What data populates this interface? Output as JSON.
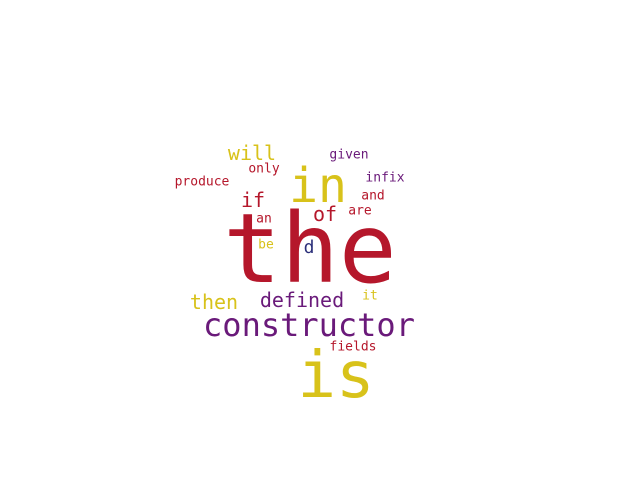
{
  "palette": {
    "red": "#b5172b",
    "purple": "#6a1a7a",
    "yellow": "#d8c21a",
    "navy": "#2b2f7a"
  },
  "words": [
    {
      "id": "the",
      "text": "the",
      "color": "#b5172b"
    },
    {
      "id": "is",
      "text": "is",
      "color": "#d8c21a"
    },
    {
      "id": "constructor",
      "text": "constructor",
      "color": "#6a1a7a"
    },
    {
      "id": "in",
      "text": "in",
      "color": "#d8c21a"
    },
    {
      "id": "will",
      "text": "will",
      "color": "#d8c21a"
    },
    {
      "id": "if",
      "text": "if",
      "color": "#b5172b"
    },
    {
      "id": "of",
      "text": "of",
      "color": "#b5172b"
    },
    {
      "id": "then",
      "text": "then",
      "color": "#d8c21a"
    },
    {
      "id": "defined",
      "text": "defined",
      "color": "#6a1a7a"
    },
    {
      "id": "d",
      "text": "d",
      "color": "#2b2f7a"
    },
    {
      "id": "given",
      "text": "given",
      "color": "#6a1a7a"
    },
    {
      "id": "only",
      "text": "only",
      "color": "#b5172b"
    },
    {
      "id": "produce",
      "text": "produce",
      "color": "#b5172b"
    },
    {
      "id": "infix",
      "text": "infix",
      "color": "#6a1a7a"
    },
    {
      "id": "and",
      "text": "and",
      "color": "#b5172b"
    },
    {
      "id": "are",
      "text": "are",
      "color": "#b5172b"
    },
    {
      "id": "an",
      "text": "an",
      "color": "#b5172b"
    },
    {
      "id": "be",
      "text": "be",
      "color": "#d8c21a"
    },
    {
      "id": "it",
      "text": "it",
      "color": "#d8c21a"
    },
    {
      "id": "fields",
      "text": "fields",
      "color": "#b5172b"
    }
  ]
}
